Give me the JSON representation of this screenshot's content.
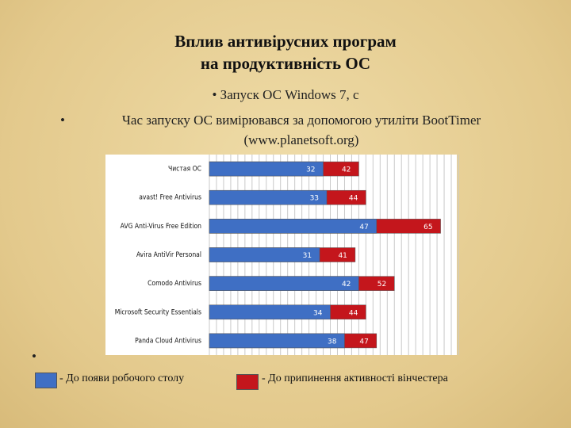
{
  "chart_data": {
    "type": "bar",
    "orientation": "horizontal",
    "overlap": true,
    "title": [
      "Вплив антивірусних програм",
      "на продуктивність ОС"
    ],
    "notes": [
      "Запуск ОС Windows 7, с",
      "Час запуску ОС вимірювався за допомогою утиліти BootTimer (www.planetsoft.org)"
    ],
    "categories": [
      "Чистая ОС",
      "avast! Free Antivirus",
      "AVG Anti-Virus Free Edition",
      "Avira AntiVir Personal",
      "Comodo Antivirus",
      "Microsoft Security Essentials",
      "Panda Cloud Antivirus"
    ],
    "series": [
      {
        "name": "- До появи робочого столу",
        "color": "#3f6fc4",
        "values": [
          32,
          33,
          47,
          31,
          42,
          34,
          38
        ]
      },
      {
        "name": "- До припинення активності вінчестера",
        "color": "#c4161c",
        "values": [
          42,
          44,
          65,
          41,
          52,
          44,
          47
        ]
      }
    ],
    "xlim": [
      0,
      70
    ],
    "xticks": [
      0,
      2,
      4,
      6,
      8,
      10,
      12,
      14,
      16,
      18,
      20,
      22,
      24,
      26,
      28,
      30,
      32,
      34,
      36,
      38,
      40,
      42,
      44,
      46,
      48,
      50,
      52,
      54,
      56,
      58,
      60,
      62,
      64,
      66,
      68,
      70
    ],
    "grid": true
  }
}
